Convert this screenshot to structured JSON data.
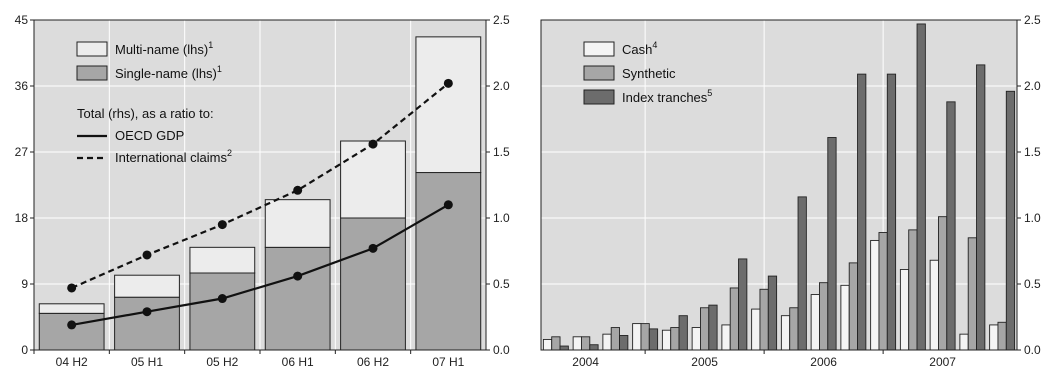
{
  "colors": {
    "panel_bg": "#dcdcdc",
    "grid": "#ffffff",
    "multi_name": "#ececec",
    "single_name": "#a6a6a6",
    "cash": "#f4f4f4",
    "synthetic": "#a6a6a6",
    "index_tranches": "#6c6c6c",
    "line": "#111111",
    "bar_edge": "#222222"
  },
  "chart_data": [
    {
      "type": "bar",
      "stacked": true,
      "grid": true,
      "legend_position": "top-left",
      "categories": [
        "04 H2",
        "05 H1",
        "05 H2",
        "06 H1",
        "06 H2",
        "07 H1"
      ],
      "y_left": {
        "ticks": [
          "0",
          "9",
          "18",
          "27",
          "36",
          "45"
        ],
        "ylim": [
          0,
          45
        ]
      },
      "y_right": {
        "ticks": [
          "0.0",
          "0.5",
          "1.0",
          "1.5",
          "2.0",
          "2.5"
        ],
        "ylim": [
          0,
          2.5
        ]
      },
      "series": [
        {
          "name": "Single-name (lhs)",
          "sup": "1",
          "axis": "left",
          "kind": "bar",
          "values": [
            5.0,
            7.2,
            10.5,
            14.0,
            18.0,
            24.2
          ]
        },
        {
          "name": "Multi-name (lhs)",
          "sup": "1",
          "axis": "left",
          "kind": "bar",
          "values": [
            1.3,
            3.0,
            3.5,
            6.5,
            10.5,
            18.5
          ]
        },
        {
          "name": "OECD GDP",
          "sup": "",
          "axis": "right",
          "kind": "line",
          "dash": false,
          "values": [
            0.19,
            0.29,
            0.39,
            0.56,
            0.77,
            1.1
          ]
        },
        {
          "name": "International claims",
          "sup": "2",
          "axis": "right",
          "kind": "line",
          "dash": true,
          "values": [
            0.47,
            0.72,
            0.95,
            1.21,
            1.56,
            2.02
          ]
        }
      ],
      "legend_subtitle": "Total (rhs), as a ratio to:"
    },
    {
      "type": "bar",
      "grid": true,
      "legend_position": "top-left",
      "x_year_labels": [
        "2004",
        "2005",
        "2006",
        "2007"
      ],
      "y": {
        "ticks": [
          "0.0",
          "0.5",
          "1.0",
          "1.5",
          "2.0",
          "2.5"
        ],
        "ylim": [
          0,
          2.5
        ]
      },
      "groups": [
        {
          "cash": 0.08,
          "synthetic": 0.1,
          "index": 0.03
        },
        {
          "cash": 0.1,
          "synthetic": 0.1,
          "index": 0.04
        },
        {
          "cash": 0.12,
          "synthetic": 0.17,
          "index": 0.11
        },
        {
          "cash": 0.2,
          "synthetic": 0.2,
          "index": 0.16
        },
        {
          "cash": 0.15,
          "synthetic": 0.17,
          "index": 0.26
        },
        {
          "cash": 0.17,
          "synthetic": 0.32,
          "index": 0.34
        },
        {
          "cash": 0.19,
          "synthetic": 0.47,
          "index": 0.69
        },
        {
          "cash": 0.31,
          "synthetic": 0.46,
          "index": 0.56
        },
        {
          "cash": 0.26,
          "synthetic": 0.32,
          "index": 1.16
        },
        {
          "cash": 0.42,
          "synthetic": 0.51,
          "index": 1.61
        },
        {
          "cash": 0.49,
          "synthetic": 0.66,
          "index": 2.09
        },
        {
          "cash": 0.83,
          "synthetic": 0.89,
          "index": 2.09
        },
        {
          "cash": 0.61,
          "synthetic": 0.91,
          "index": 2.47
        },
        {
          "cash": 0.68,
          "synthetic": 1.01,
          "index": 1.88
        },
        {
          "cash": 0.12,
          "synthetic": 0.85,
          "index": 2.16
        },
        {
          "cash": 0.19,
          "synthetic": 0.21,
          "index": 1.96
        }
      ],
      "series": [
        {
          "name": "Cash",
          "sup": "4",
          "key": "cash"
        },
        {
          "name": "Synthetic",
          "sup": "",
          "key": "synthetic"
        },
        {
          "name": "Index tranches",
          "sup": "5",
          "key": "index"
        }
      ]
    }
  ]
}
